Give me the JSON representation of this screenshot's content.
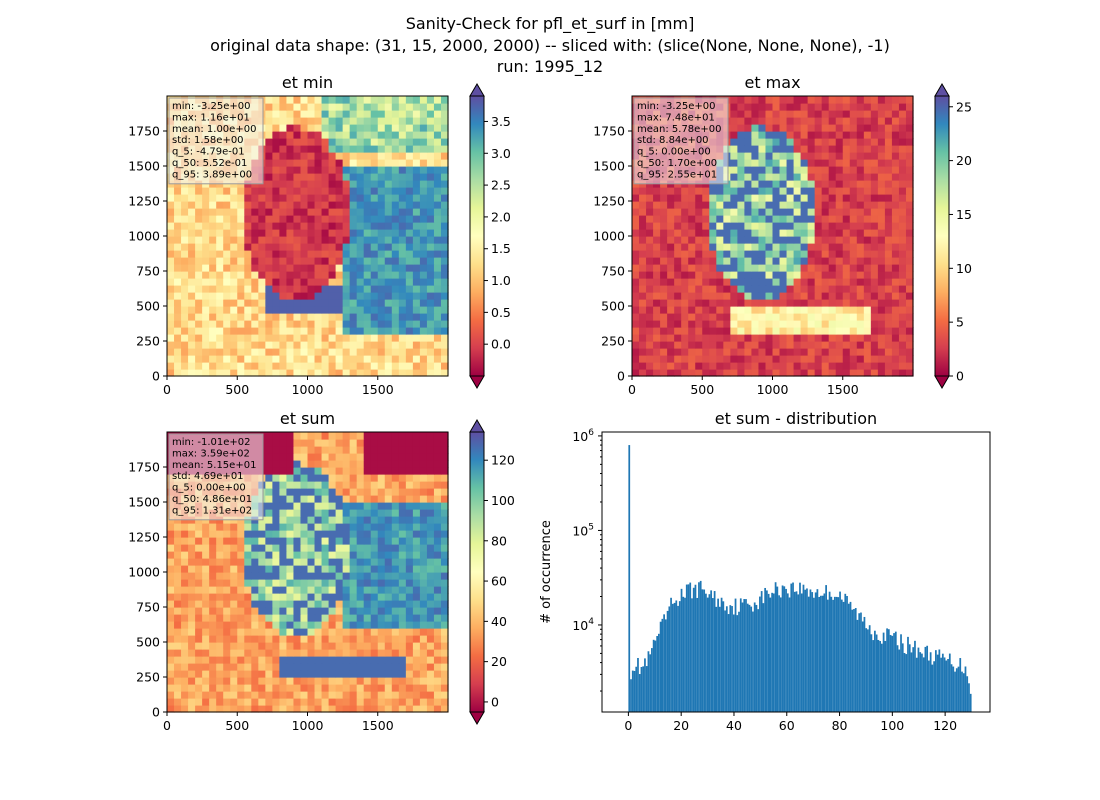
{
  "figure": {
    "title_lines": [
      "Sanity-Check for pfl_et_surf in [mm]",
      "original data shape: (31, 15, 2000, 2000) -- sliced with: (slice(None, None, None), -1)",
      "run: 1995_12"
    ]
  },
  "chart_data": [
    {
      "type": "heatmap",
      "title": "et min",
      "colormap": "Spectral",
      "x_range": [
        0,
        2000
      ],
      "y_range": [
        0,
        2000
      ],
      "x_ticks": [
        0,
        500,
        1000,
        1500
      ],
      "y_ticks": [
        0,
        250,
        500,
        750,
        1000,
        1250,
        1500,
        1750
      ],
      "colorbar": {
        "range": [
          -0.5,
          3.9
        ],
        "ticks": [
          0.0,
          0.5,
          1.0,
          1.5,
          2.0,
          2.5,
          3.0,
          3.5
        ],
        "extend": "both"
      },
      "stats_lines": [
        "min: -3.25e+00",
        "max: 1.16e+01",
        "mean: 1.00e+00",
        "std: 1.58e+00",
        "q_5: -4.79e-01",
        "q_50: 5.52e-01",
        "q_95: 3.89e+00"
      ]
    },
    {
      "type": "heatmap",
      "title": "et max",
      "colormap": "Spectral",
      "x_range": [
        0,
        2000
      ],
      "y_range": [
        0,
        2000
      ],
      "x_ticks": [
        0,
        500,
        1000,
        1500
      ],
      "y_ticks": [
        0,
        250,
        500,
        750,
        1000,
        1250,
        1500,
        1750
      ],
      "colorbar": {
        "range": [
          0,
          26
        ],
        "ticks": [
          0,
          5,
          10,
          15,
          20,
          25
        ],
        "extend": "both"
      },
      "stats_lines": [
        "min: -3.25e+00",
        "max: 7.48e+01",
        "mean: 5.78e+00",
        "std: 8.84e+00",
        "q_5: 0.00e+00",
        "q_50: 1.70e+00",
        "q_95: 2.55e+01"
      ]
    },
    {
      "type": "heatmap",
      "title": "et sum",
      "colormap": "Spectral",
      "x_range": [
        0,
        2000
      ],
      "y_range": [
        0,
        2000
      ],
      "x_ticks": [
        0,
        500,
        1000,
        1500
      ],
      "y_ticks": [
        0,
        250,
        500,
        750,
        1000,
        1250,
        1500,
        1750
      ],
      "colorbar": {
        "range": [
          -5,
          134
        ],
        "ticks": [
          0,
          20,
          40,
          60,
          80,
          100,
          120
        ],
        "extend": "both"
      },
      "stats_lines": [
        "min: -1.01e+02",
        "max: 3.59e+02",
        "mean: 5.15e+01",
        "std: 4.69e+01",
        "q_5: 0.00e+00",
        "q_50: 4.86e+01",
        "q_95: 1.31e+02"
      ]
    },
    {
      "type": "bar",
      "title": "et sum - distribution",
      "xlabel": "",
      "ylabel": "# of occurrence",
      "y_scale": "log",
      "x_range": [
        -10,
        137
      ],
      "x_ticks": [
        0,
        20,
        40,
        60,
        80,
        100,
        120
      ],
      "y_range": [
        1200,
        1100000
      ],
      "y_ticks": [
        10000,
        100000,
        1000000
      ],
      "y_tick_labels": [
        [
          "10",
          "4"
        ],
        [
          "10",
          "5"
        ],
        [
          "10",
          "6"
        ]
      ],
      "bin_width": 0.66,
      "bar_color": "#1f77b4",
      "profile": [
        [
          0,
          800000
        ],
        [
          0.6,
          3200
        ],
        [
          2,
          4000
        ],
        [
          5,
          3500
        ],
        [
          8,
          4500
        ],
        [
          10,
          6500
        ],
        [
          13,
          10000
        ],
        [
          16,
          16000
        ],
        [
          20,
          21000
        ],
        [
          24,
          24000
        ],
        [
          28,
          24500
        ],
        [
          32,
          20000
        ],
        [
          36,
          17000
        ],
        [
          40,
          16000
        ],
        [
          44,
          16500
        ],
        [
          48,
          17500
        ],
        [
          52,
          21000
        ],
        [
          56,
          24000
        ],
        [
          60,
          25000
        ],
        [
          64,
          24500
        ],
        [
          68,
          23500
        ],
        [
          72,
          22000
        ],
        [
          76,
          22500
        ],
        [
          80,
          21000
        ],
        [
          84,
          16000
        ],
        [
          88,
          12000
        ],
        [
          92,
          9000
        ],
        [
          96,
          8000
        ],
        [
          100,
          7500
        ],
        [
          104,
          6500
        ],
        [
          110,
          5500
        ],
        [
          116,
          4700
        ],
        [
          122,
          4200
        ],
        [
          128,
          3600
        ],
        [
          130,
          2000
        ]
      ]
    }
  ]
}
